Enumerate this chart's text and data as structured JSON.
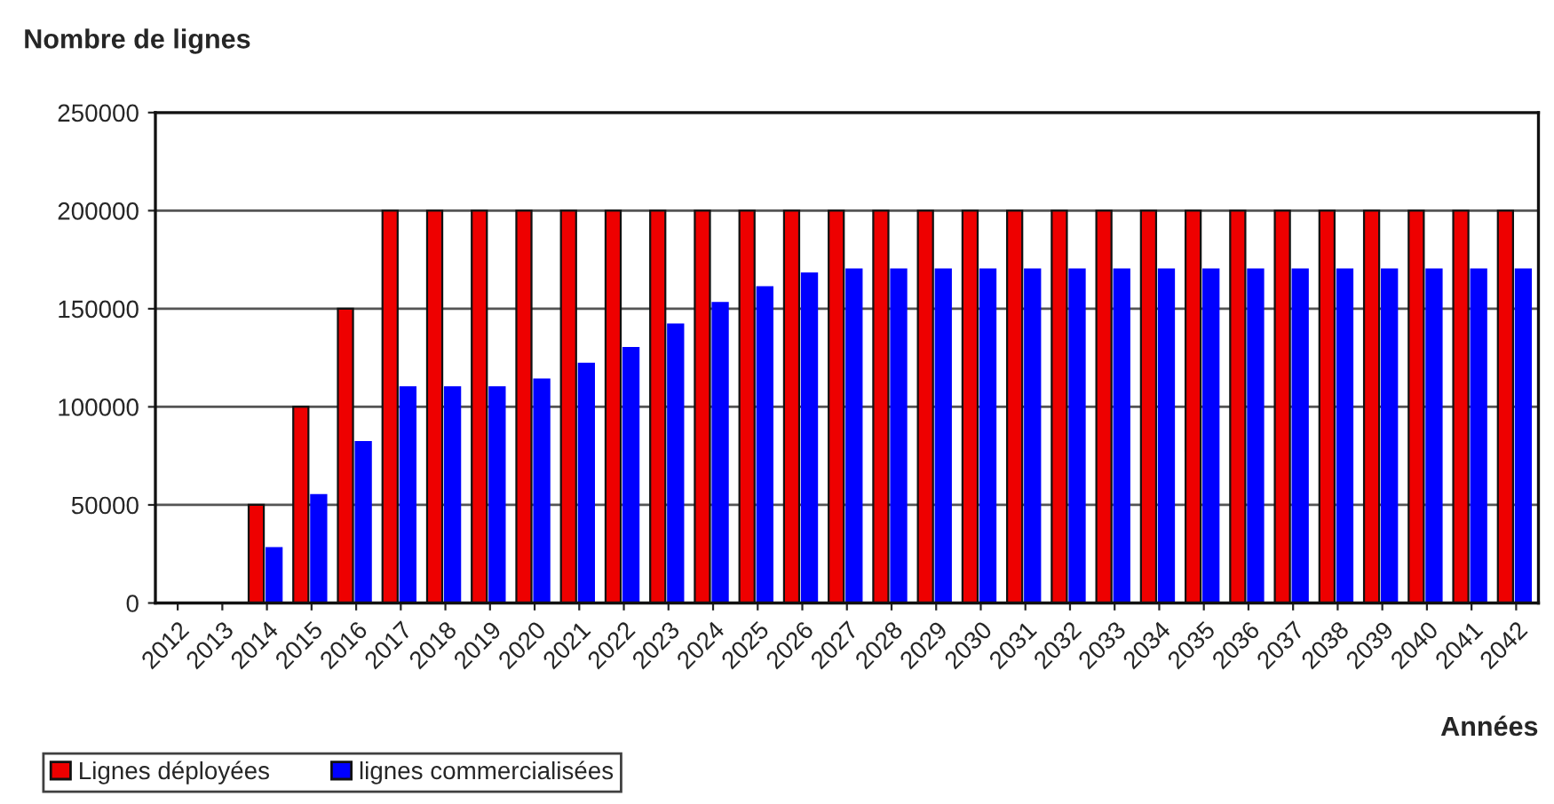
{
  "chart_data": {
    "type": "bar",
    "ylabel": "Nombre de lignes",
    "xlabel": "Années",
    "categories": [
      "2012",
      "2013",
      "2014",
      "2015",
      "2016",
      "2017",
      "2018",
      "2019",
      "2020",
      "2021",
      "2022",
      "2023",
      "2024",
      "2025",
      "2026",
      "2027",
      "2028",
      "2029",
      "2030",
      "2031",
      "2032",
      "2033",
      "2034",
      "2035",
      "2036",
      "2037",
      "2038",
      "2039",
      "2040",
      "2041",
      "2042"
    ],
    "series": [
      {
        "name": "Lignes déployées",
        "color": "#ee0000",
        "values": [
          0,
          0,
          50000,
          100000,
          150000,
          200000,
          200000,
          200000,
          200000,
          200000,
          200000,
          200000,
          200000,
          200000,
          200000,
          200000,
          200000,
          200000,
          200000,
          200000,
          200000,
          200000,
          200000,
          200000,
          200000,
          200000,
          200000,
          200000,
          200000,
          200000,
          200000
        ]
      },
      {
        "name": "lignes commercialisées",
        "color": "#0000ff",
        "values": [
          0,
          0,
          28000,
          55000,
          82000,
          110000,
          110000,
          110000,
          114000,
          122000,
          130000,
          142000,
          153000,
          161000,
          168000,
          170000,
          170000,
          170000,
          170000,
          170000,
          170000,
          170000,
          170000,
          170000,
          170000,
          170000,
          170000,
          170000,
          170000,
          170000,
          170000
        ]
      }
    ],
    "ylim": [
      0,
      250000
    ],
    "yticks": [
      0,
      50000,
      100000,
      150000,
      200000,
      250000
    ],
    "grid": "y",
    "legend": "bottom left"
  }
}
